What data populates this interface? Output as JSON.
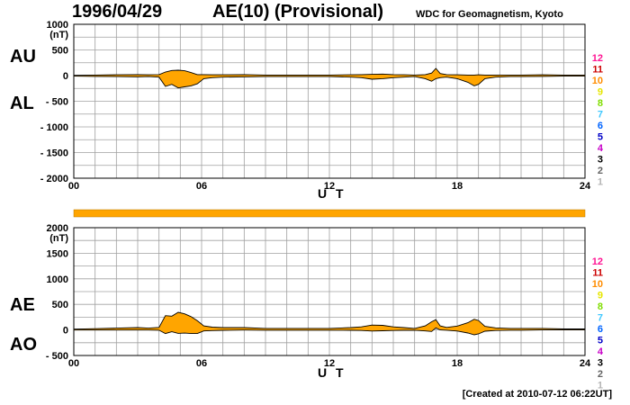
{
  "header": {
    "date": "1996/04/29",
    "title": "AE(10) (Provisional)",
    "organization": "WDC for Geomagnetism, Kyoto"
  },
  "footer": {
    "created": "[Created at 2010-07-12 06:22UT]"
  },
  "colors": {
    "fill": "#ffa500",
    "line": "#000000",
    "grid": "#a0a0a0",
    "bar": "#ffa500"
  },
  "station_count_colors": [
    "#ff1493",
    "#cc0000",
    "#ff8c00",
    "#e6e600",
    "#7fdd00",
    "#40c8ff",
    "#0064ff",
    "#0000c8",
    "#c800c8",
    "#000000",
    "#646464",
    "#b4b4b4"
  ],
  "station_counts": [
    "12",
    "11",
    "10",
    "9",
    "8",
    "7",
    "6",
    "5",
    "4",
    "3",
    "2",
    "1"
  ],
  "chart_data": [
    {
      "type": "area",
      "upper_label": "AU",
      "lower_label": "AL",
      "xlabel": "U T",
      "ylabel": "(nT)",
      "xlim": [
        0,
        24
      ],
      "ylim": [
        -2000,
        1000
      ],
      "x_ticks": [
        "00",
        "06",
        "12",
        "18",
        "24"
      ],
      "y_ticks": [
        "1000",
        "500",
        "0",
        "- 500",
        "- 1000",
        "- 1500",
        "- 2000"
      ],
      "x": [
        0,
        1,
        2,
        3,
        3.5,
        4,
        4.3,
        4.6,
        4.9,
        5.2,
        5.5,
        5.8,
        6.1,
        6.5,
        7,
        8,
        9,
        10,
        11,
        12,
        13,
        13.5,
        14,
        14.5,
        15,
        15.5,
        16,
        16.5,
        16.8,
        17.0,
        17.2,
        17.5,
        18,
        18.5,
        18.8,
        19.0,
        19.3,
        19.8,
        20.5,
        21,
        22,
        23,
        24
      ],
      "series": [
        {
          "name": "AU",
          "values": [
            5,
            10,
            15,
            20,
            15,
            20,
            70,
            100,
            105,
            95,
            60,
            20,
            20,
            15,
            15,
            20,
            10,
            10,
            10,
            10,
            15,
            20,
            25,
            30,
            20,
            15,
            10,
            20,
            50,
            140,
            40,
            20,
            15,
            10,
            10,
            15,
            10,
            10,
            10,
            10,
            15,
            10,
            10
          ]
        },
        {
          "name": "AL",
          "values": [
            -10,
            -15,
            -20,
            -25,
            -20,
            -30,
            -210,
            -170,
            -240,
            -220,
            -200,
            -160,
            -60,
            -40,
            -30,
            -25,
            -20,
            -20,
            -20,
            -20,
            -30,
            -40,
            -70,
            -60,
            -40,
            -30,
            -20,
            -60,
            -110,
            -60,
            -40,
            -30,
            -60,
            -130,
            -200,
            -170,
            -60,
            -30,
            -20,
            -20,
            -15,
            -10,
            -10
          ]
        }
      ]
    },
    {
      "type": "area",
      "upper_label": "AE",
      "lower_label": "AO",
      "xlabel": "U T",
      "ylabel": "(nT)",
      "xlim": [
        0,
        24
      ],
      "ylim": [
        -500,
        2000
      ],
      "x_ticks": [
        "00",
        "06",
        "12",
        "18",
        "24"
      ],
      "y_ticks": [
        "2000",
        "1500",
        "1000",
        "500",
        "0",
        "- 500"
      ],
      "x": [
        0,
        1,
        2,
        3,
        3.5,
        4,
        4.3,
        4.6,
        4.9,
        5.2,
        5.5,
        5.8,
        6.1,
        6.5,
        7,
        8,
        9,
        10,
        11,
        12,
        13,
        13.5,
        14,
        14.5,
        15,
        15.5,
        16,
        16.5,
        16.8,
        17.0,
        17.2,
        17.5,
        18,
        18.5,
        18.8,
        19.0,
        19.3,
        19.8,
        20.5,
        21,
        22,
        23,
        24
      ],
      "series": [
        {
          "name": "AE",
          "values": [
            15,
            25,
            35,
            45,
            35,
            50,
            280,
            270,
            345,
            315,
            260,
            180,
            80,
            55,
            45,
            45,
            30,
            30,
            30,
            30,
            45,
            60,
            95,
            90,
            60,
            45,
            30,
            80,
            160,
            200,
            80,
            50,
            75,
            140,
            210,
            185,
            70,
            40,
            30,
            30,
            30,
            20,
            20
          ]
        },
        {
          "name": "AO",
          "values": [
            -2,
            -2,
            -2,
            -2,
            -2,
            -5,
            -70,
            -35,
            -67,
            -62,
            -70,
            -70,
            -20,
            -12,
            -7,
            -2,
            -5,
            -5,
            -5,
            -5,
            -7,
            -10,
            -22,
            -15,
            -10,
            -7,
            -5,
            -20,
            -30,
            40,
            0,
            -5,
            -22,
            -60,
            -95,
            -77,
            -25,
            -10,
            -5,
            -5,
            0,
            0,
            0
          ]
        }
      ]
    }
  ]
}
